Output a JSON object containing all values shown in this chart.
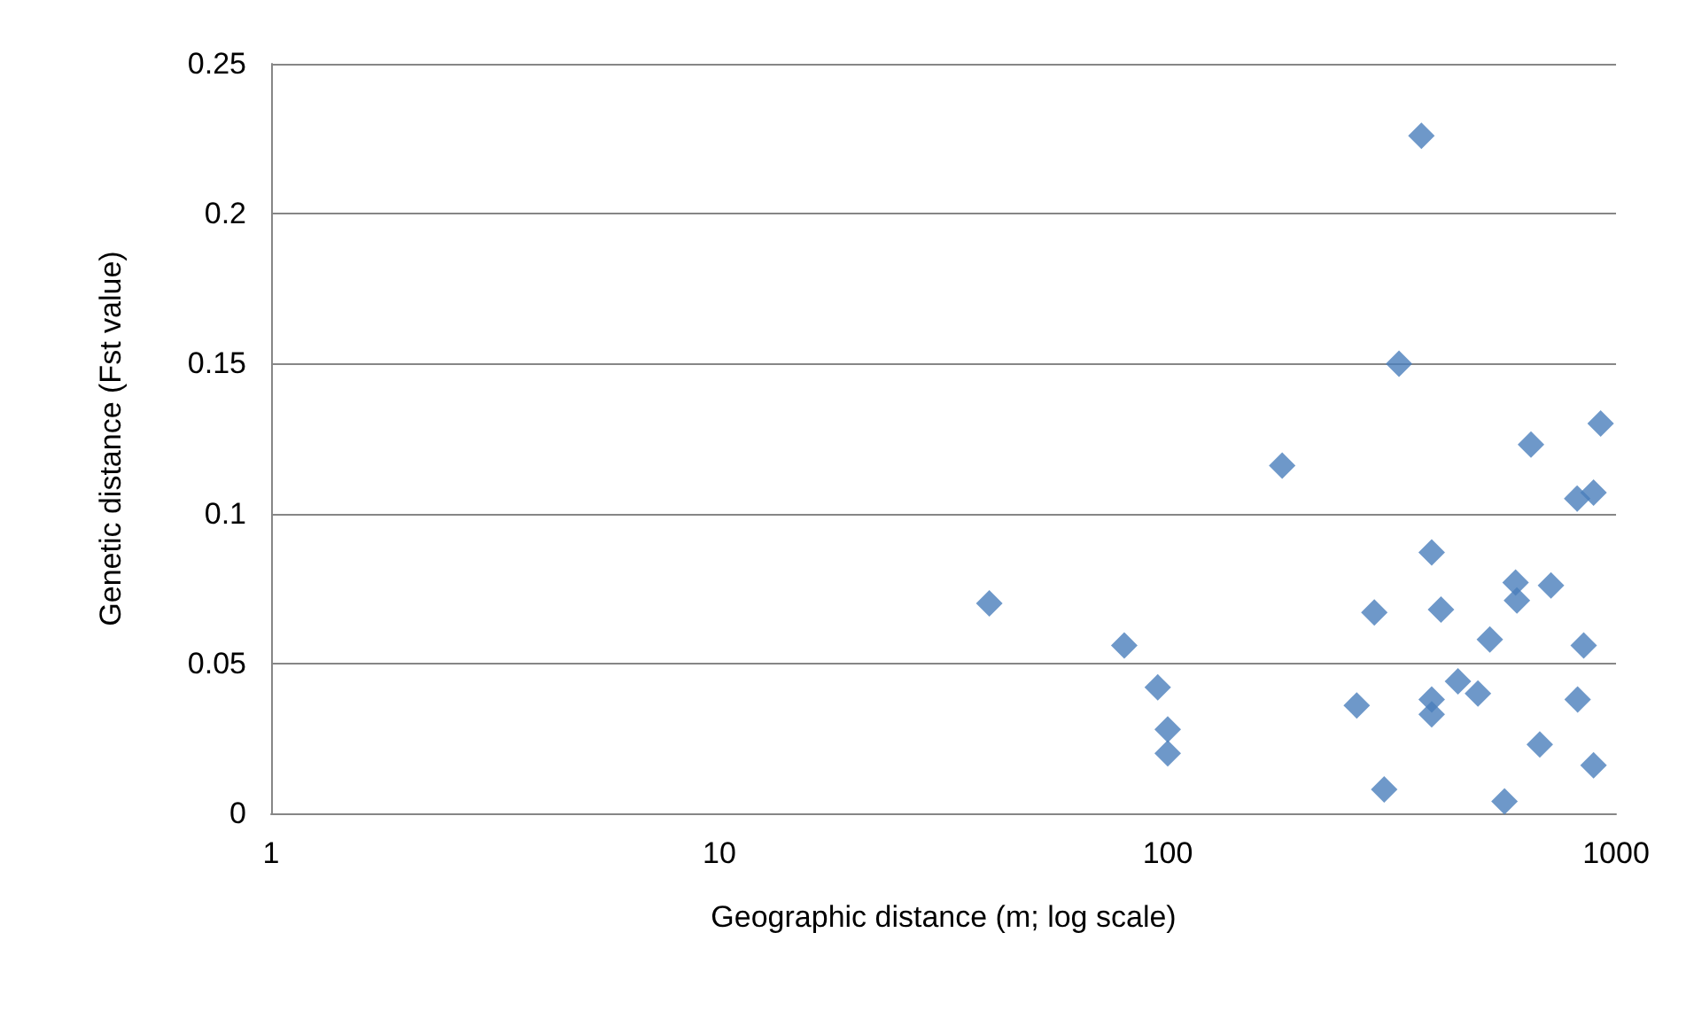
{
  "chart_data": {
    "type": "scatter",
    "xlabel": "Geographic distance (m; log scale)",
    "ylabel": "Genetic distance (Fst value)",
    "log": "x",
    "xlim": [
      1,
      1000
    ],
    "xticks": [
      1,
      10,
      100,
      1000
    ],
    "ylim": [
      0,
      0.25
    ],
    "yticks": [
      0,
      0.05,
      0.1,
      0.15,
      0.2,
      0.25
    ],
    "grid": "y",
    "marker": "diamond",
    "series": [
      {
        "color": "#4a7ebb",
        "x": [
          40,
          80,
          95,
          100,
          100,
          180,
          368,
          328,
          264,
          289,
          304,
          388,
          407,
          388,
          388,
          444,
          492,
          523,
          564,
          597,
          601,
          646,
          676,
          716,
          819,
          891,
          924,
          847,
          821,
          891
        ],
        "values": [
          0.07,
          0.056,
          0.042,
          0.028,
          0.02,
          0.116,
          0.226,
          0.15,
          0.036,
          0.067,
          0.008,
          0.087,
          0.068,
          0.038,
          0.033,
          0.044,
          0.04,
          0.058,
          0.004,
          0.077,
          0.071,
          0.123,
          0.023,
          0.076,
          0.105,
          0.107,
          0.13,
          0.056,
          0.038,
          0.016
        ]
      }
    ]
  }
}
